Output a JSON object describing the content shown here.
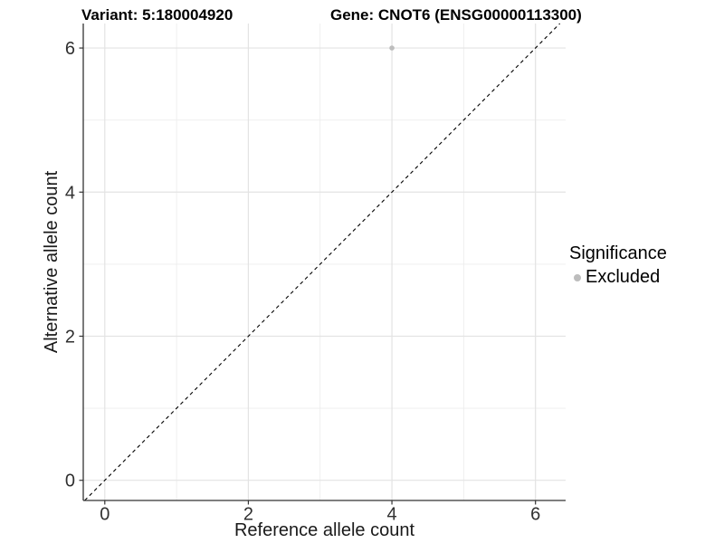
{
  "chart_data": {
    "type": "scatter",
    "title_left": "Variant: 5:180004920",
    "title_right": "Gene: CNOT6 (ENSG00000113300)",
    "xlabel": "Reference allele count",
    "ylabel": "Alternative allele count",
    "xlim": [
      -0.3,
      6.42
    ],
    "ylim": [
      -0.28,
      6.34
    ],
    "x_ticks": [
      0,
      2,
      4,
      6
    ],
    "y_ticks": [
      0,
      2,
      4,
      6
    ],
    "x_minor_ticks": [
      1,
      3,
      5
    ],
    "y_minor_ticks": [
      1,
      3,
      5
    ],
    "grid": "major+minor",
    "legend_position": "right",
    "reference_line": {
      "kind": "identity",
      "slope": 1,
      "intercept": 0,
      "style": "dashed"
    },
    "series": [
      {
        "name": "Excluded",
        "color": "#bdbdbd",
        "points": [
          {
            "x": 4,
            "y": 6
          }
        ]
      }
    ],
    "legend": {
      "title": "Significance",
      "items": [
        {
          "label": "Excluded",
          "color": "#bdbdbd"
        }
      ]
    },
    "colors": {
      "background": "#ffffff",
      "grid_major": "#e3e3e3",
      "grid_minor": "#ededed",
      "axis_line": "#333333",
      "tick_mark": "#333333",
      "tick_text": "#303030",
      "axis_title_text": "#1a1a1a",
      "reference_line": "#000000"
    }
  }
}
